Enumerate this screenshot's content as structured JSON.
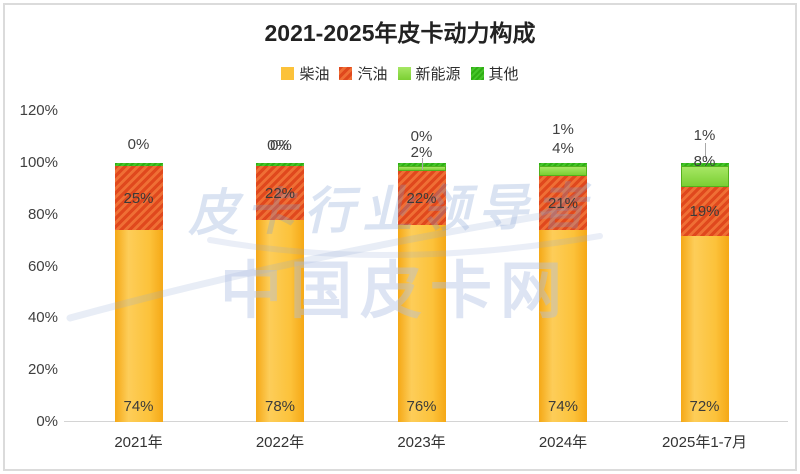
{
  "title": "2021-2025年皮卡动力构成",
  "legend": [
    {
      "label": "柴油",
      "pattern": "solid-yellow"
    },
    {
      "label": "汽油",
      "pattern": "hatch-orange"
    },
    {
      "label": "新能源",
      "pattern": "solid-green"
    },
    {
      "label": "其他",
      "pattern": "hatch-darkgreen"
    }
  ],
  "chart_data": {
    "type": "bar",
    "stacked": true,
    "title": "2021-2025年皮卡动力构成",
    "categories": [
      "2021年",
      "2022年",
      "2023年",
      "2024年",
      "2025年1-7月"
    ],
    "series": [
      {
        "name": "柴油",
        "values": [
          74,
          78,
          76,
          74,
          72
        ]
      },
      {
        "name": "汽油",
        "values": [
          25,
          22,
          22,
          21,
          19
        ]
      },
      {
        "name": "新能源",
        "values": [
          0,
          0,
          2,
          4,
          8
        ]
      },
      {
        "name": "其他",
        "values": [
          0,
          0,
          0,
          1,
          1
        ]
      }
    ],
    "segment_labels": {
      "diesel": [
        "74%",
        "78%",
        "76%",
        "74%",
        "72%"
      ],
      "gasoline": [
        "25%",
        "22%",
        "22%",
        "21%",
        "19%"
      ]
    },
    "top_labels": [
      [
        "0%"
      ],
      [
        "0%",
        "0%"
      ],
      [
        "0%",
        "2%"
      ],
      [
        "1%",
        "4%"
      ],
      [
        "1%",
        "8%"
      ]
    ],
    "y_ticks": [
      "0%",
      "20%",
      "40%",
      "60%",
      "80%",
      "100%",
      "120%"
    ],
    "ylim": [
      0,
      120
    ],
    "grid": false,
    "legend_position": "top"
  },
  "watermarks": {
    "script": "皮卡行业领导者",
    "main": "中国皮卡网"
  },
  "colors": {
    "diesel_main": "#FCC23A",
    "diesel_light": "#FDCD59",
    "diesel_dark": "#F5A816",
    "gasoline_base": "#E0481D",
    "gasoline_stripe": "#EF6F35",
    "newenergy_top": "#A6E764",
    "newenergy_bottom": "#7BCF33",
    "newenergy_edge": "#55B01C",
    "other_base": "#2FAE14",
    "other_stripe": "#46C52A",
    "label_text": "#3A3A3A",
    "axis_line": "#D4D4D4",
    "watermark_blue": "#AFC0E4"
  }
}
